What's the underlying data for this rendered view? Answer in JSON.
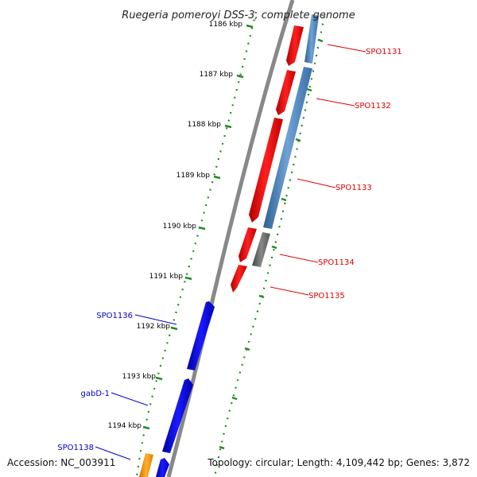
{
  "title": "Ruegeria pomeroyi DSS-3, complete genome",
  "footer": {
    "accession": "Accession: NC_003911",
    "topology": "Topology: circular; Length: 4,109,442 bp; Genes: 3,872"
  },
  "ruler": {
    "ticks": [
      "1186 kbp",
      "1187 kbp",
      "1188 kbp",
      "1189 kbp",
      "1190 kbp",
      "1191 kbp",
      "1192 kbp",
      "1193 kbp",
      "1194 kbp"
    ]
  },
  "genes_forward": [
    {
      "name": "SPO1131",
      "color": "#e00000"
    },
    {
      "name": "SPO1132",
      "color": "#e00000"
    },
    {
      "name": "SPO1133",
      "color": "#e00000"
    },
    {
      "name": "SPO1134",
      "color": "#e00000"
    },
    {
      "name": "SPO1135",
      "color": "#e00000"
    }
  ],
  "genes_reverse": [
    {
      "name": "SPO1136",
      "color": "#0000cc"
    },
    {
      "name": "gabD-1",
      "color": "#0000cc"
    },
    {
      "name": "SPO1138",
      "color": "#0000cc"
    }
  ],
  "colors": {
    "forward_cds": "#ff0000",
    "reverse_cds": "#0000ee",
    "track_blue": "#4a86c0",
    "track_gray": "#666666",
    "orange": "#ff9900",
    "ruler_green": "#228b22",
    "backbone": "#888888"
  }
}
